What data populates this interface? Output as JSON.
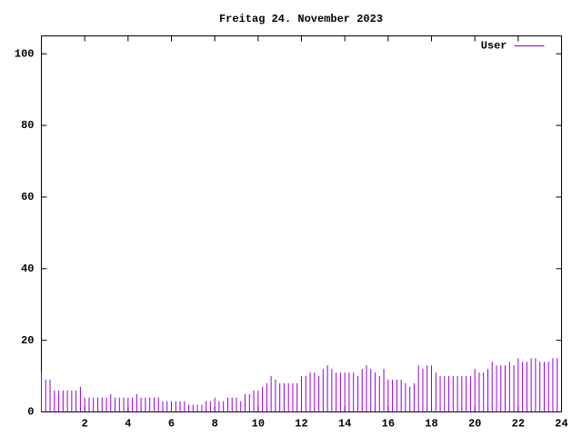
{
  "chart_data": {
    "type": "impulses",
    "title": "Freitag 24. November 2023",
    "x": [
      0,
      0.2,
      0.4,
      0.6,
      0.8,
      1,
      1.2,
      1.4,
      1.6,
      1.8,
      2,
      2.2,
      2.4,
      2.6,
      2.8,
      3,
      3.2,
      3.4,
      3.6,
      3.8,
      4,
      4.2,
      4.4,
      4.6,
      4.8,
      5,
      5.2,
      5.4,
      5.6,
      5.8,
      6,
      6.2,
      6.4,
      6.6,
      6.8,
      7,
      7.2,
      7.4,
      7.6,
      7.8,
      8,
      8.2,
      8.4,
      8.6,
      8.8,
      9,
      9.2,
      9.4,
      9.6,
      9.8,
      10,
      10.2,
      10.4,
      10.6,
      10.8,
      11,
      11.2,
      11.4,
      11.6,
      11.8,
      12,
      12.2,
      12.4,
      12.6,
      12.8,
      13,
      13.2,
      13.4,
      13.6,
      13.8,
      14,
      14.2,
      14.4,
      14.6,
      14.8,
      15,
      15.2,
      15.4,
      15.6,
      15.8,
      16,
      16.2,
      16.4,
      16.6,
      16.8,
      17,
      17.2,
      17.4,
      17.6,
      17.8,
      18,
      18.2,
      18.4,
      18.6,
      18.8,
      19,
      19.2,
      19.4,
      19.6,
      19.8,
      20,
      20.2,
      20.4,
      20.6,
      20.8,
      21,
      21.2,
      21.4,
      21.6,
      21.8,
      22,
      22.2,
      22.4,
      22.6,
      22.8,
      23,
      23.2,
      23.4,
      23.6,
      23.8
    ],
    "series": [
      {
        "name": "User",
        "color": "#9400d3",
        "values": [
          11,
          9,
          9,
          6,
          6,
          6,
          6,
          6,
          6,
          7,
          4,
          4,
          4,
          4,
          4,
          4,
          5,
          4,
          4,
          4,
          4,
          4,
          5,
          4,
          4,
          4,
          4,
          4,
          3,
          3,
          3,
          3,
          3,
          3,
          2,
          2,
          2,
          2,
          3,
          3,
          4,
          3,
          3,
          4,
          4,
          4,
          3,
          5,
          5,
          6,
          6,
          7,
          8,
          10,
          9,
          8,
          8,
          8,
          8,
          8,
          10,
          10,
          11,
          11,
          10,
          12,
          13,
          12,
          11,
          11,
          11,
          11,
          11,
          10,
          12,
          13,
          12,
          11,
          10,
          12,
          9,
          9,
          9,
          9,
          8,
          7,
          8,
          13,
          12,
          13,
          13,
          11,
          10,
          10,
          10,
          10,
          10,
          10,
          10,
          10,
          12,
          11,
          11,
          12,
          14,
          13,
          13,
          13,
          14,
          13,
          15,
          14,
          14,
          15,
          15,
          14,
          14,
          14,
          15,
          15
        ]
      }
    ],
    "xlim": [
      0,
      24
    ],
    "xticks": [
      2,
      4,
      6,
      8,
      10,
      12,
      14,
      16,
      18,
      20,
      22,
      24
    ],
    "ylim": [
      0,
      105
    ],
    "yticks": [
      0,
      20,
      40,
      60,
      80,
      100
    ],
    "legend": "top-right"
  }
}
